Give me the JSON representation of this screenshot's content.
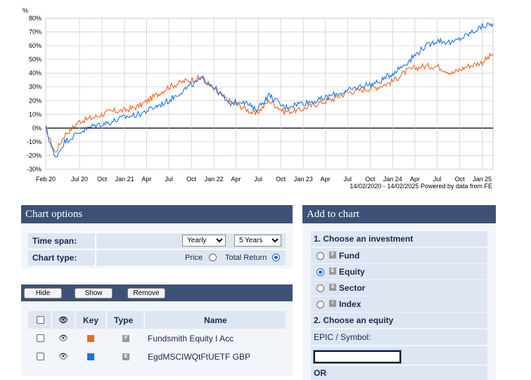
{
  "chart_data": {
    "type": "line",
    "ylabel": "%",
    "ylim": [
      -30,
      80
    ],
    "yticks": [
      "80%",
      "70%",
      "60%",
      "50%",
      "40%",
      "30%",
      "20%",
      "10%",
      "0%",
      "-10%",
      "-20%",
      "-30%"
    ],
    "xticks": [
      "Feb 20",
      "Jul 20",
      "Oct",
      "Jan 21",
      "Apr",
      "Jul",
      "Oct",
      "Jan 22",
      "Apr",
      "Jul",
      "Oct",
      "Jan 23",
      "Apr",
      "Jul",
      "Oct",
      "Jan 24",
      "Apr",
      "Jul",
      "Oct",
      "Jan 25"
    ],
    "date_range": "14/02/2020 - 14/02/2025",
    "credit": "Powered by data from FE",
    "series": [
      {
        "color": "#f26522",
        "x": [
          "2020-02-14",
          "2020-03-23",
          "2020-05-01",
          "2020-07-01",
          "2020-09-01",
          "2020-11-01",
          "2021-01-01",
          "2021-03-01",
          "2021-05-01",
          "2021-07-01",
          "2021-09-01",
          "2021-11-15",
          "2022-01-01",
          "2022-03-01",
          "2022-05-01",
          "2022-06-20",
          "2022-08-15",
          "2022-10-15",
          "2022-12-15",
          "2023-03-01",
          "2023-05-01",
          "2023-07-01",
          "2023-09-01",
          "2023-11-01",
          "2024-01-01",
          "2024-03-01",
          "2024-05-01",
          "2024-07-01",
          "2024-09-01",
          "2024-11-01",
          "2025-01-01",
          "2025-02-14"
        ],
        "values": [
          0,
          -18,
          -5,
          5,
          8,
          12,
          13,
          16,
          23,
          30,
          34,
          37,
          28,
          20,
          15,
          10,
          20,
          12,
          13,
          18,
          21,
          26,
          28,
          30,
          34,
          42,
          45,
          45,
          40,
          45,
          48,
          54
        ]
      },
      {
        "color": "#1a73e8",
        "x": [
          "2020-02-14",
          "2020-03-23",
          "2020-05-01",
          "2020-07-01",
          "2020-09-01",
          "2020-11-01",
          "2021-01-01",
          "2021-03-01",
          "2021-05-01",
          "2021-07-01",
          "2021-09-01",
          "2021-11-15",
          "2022-01-01",
          "2022-03-01",
          "2022-05-01",
          "2022-06-20",
          "2022-08-15",
          "2022-10-15",
          "2022-12-15",
          "2023-03-01",
          "2023-05-01",
          "2023-07-01",
          "2023-09-01",
          "2023-11-01",
          "2024-01-01",
          "2024-03-01",
          "2024-05-01",
          "2024-07-01",
          "2024-09-01",
          "2024-11-01",
          "2025-01-01",
          "2025-02-14"
        ],
        "values": [
          0,
          -22,
          -10,
          -3,
          2,
          4,
          8,
          10,
          15,
          20,
          28,
          36,
          30,
          18,
          20,
          13,
          24,
          15,
          18,
          20,
          24,
          27,
          31,
          33,
          40,
          48,
          58,
          64,
          62,
          68,
          74,
          76
        ]
      }
    ]
  },
  "chart_options": {
    "title": "Chart options",
    "time_span_label": "Time span:",
    "interval_value": "Yearly",
    "period_value": "5 Years",
    "chart_type_label": "Chart type:",
    "price_label": "Price",
    "total_return_label": "Total Return",
    "selected_type": "Total Return"
  },
  "list_panel": {
    "hide_label": "Hide",
    "show_label": "Show",
    "remove_label": "Remove",
    "columns": {
      "key": "Key",
      "type": "Type",
      "name": "Name"
    },
    "rows": [
      {
        "name": "Fundsmith Equity I Acc",
        "type_letter": "F",
        "color": "#f26522"
      },
      {
        "name": "EgdMSCIWQtFtUETF GBP",
        "type_letter": "E",
        "color": "#1a73e8"
      }
    ]
  },
  "add_panel": {
    "title": "Add to chart",
    "step1": "1. Choose an investment",
    "options": [
      {
        "letter": "F",
        "label": "Fund"
      },
      {
        "letter": "E",
        "label": "Equity"
      },
      {
        "letter": "S",
        "label": "Sector"
      },
      {
        "letter": "I",
        "label": "Index"
      }
    ],
    "selected": "Equity",
    "step2": "2. Choose an equity",
    "epic_label": "EPIC / Symbol:",
    "epic_value": "",
    "or_label": "OR"
  }
}
